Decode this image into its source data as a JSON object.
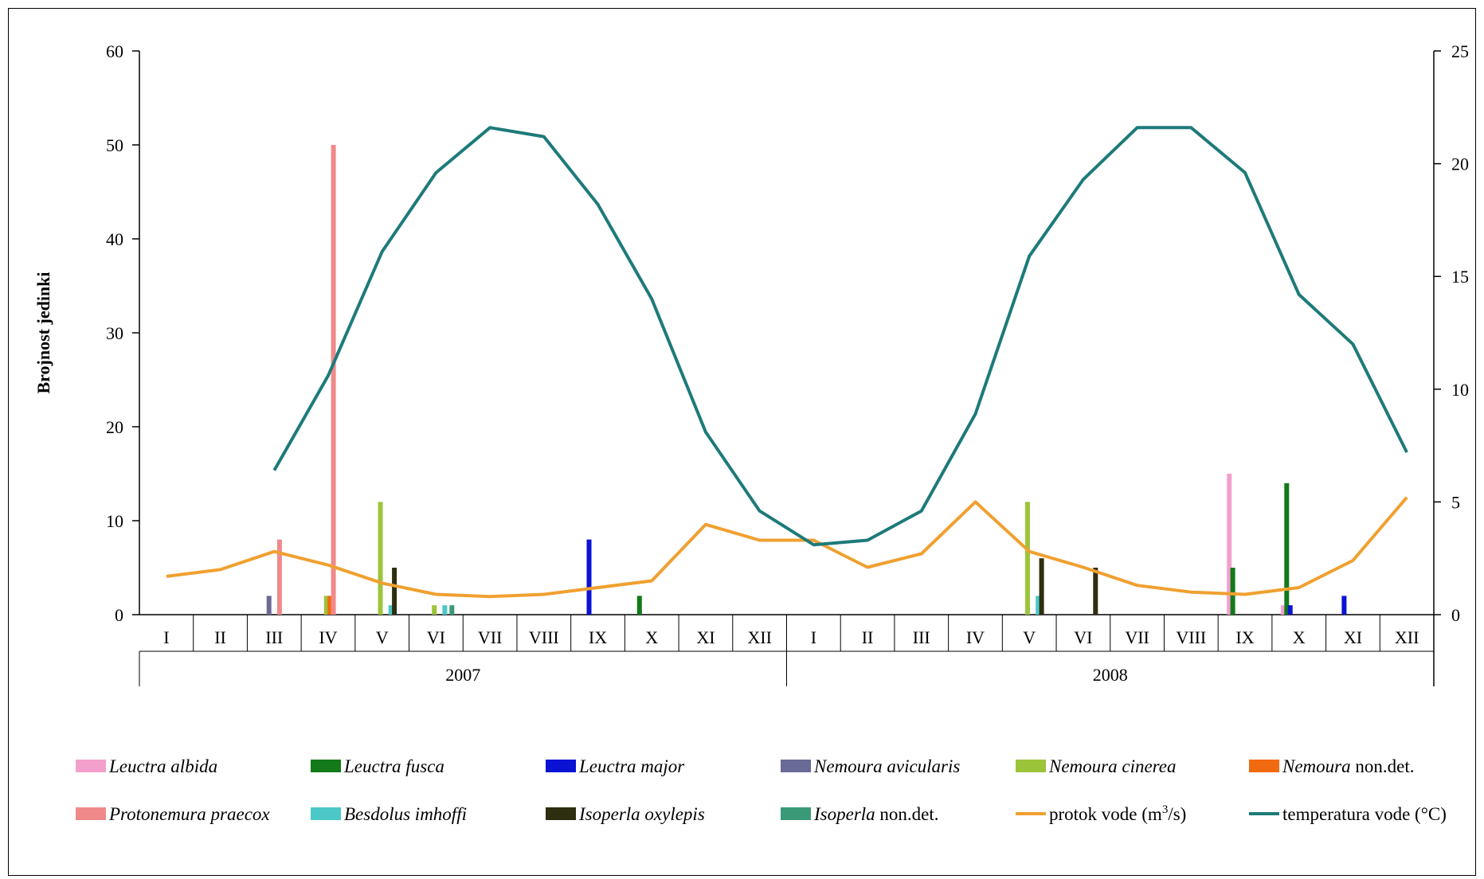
{
  "chart_data": {
    "type": "bar+line",
    "ylabel": "Brojnost jedinki",
    "ylim": [
      0,
      60
    ],
    "yticks": [
      "0",
      "10",
      "20",
      "30",
      "40",
      "50",
      "60"
    ],
    "y2lim": [
      0,
      25
    ],
    "y2ticks": [
      "0",
      "5",
      "10",
      "15",
      "20",
      "25"
    ],
    "months": [
      "I",
      "II",
      "III",
      "IV",
      "V",
      "VI",
      "VII",
      "VIII",
      "IX",
      "X",
      "XI",
      "XII",
      "I",
      "II",
      "III",
      "IV",
      "V",
      "VI",
      "VII",
      "VIII",
      "IX",
      "X",
      "XI",
      "XII"
    ],
    "years": [
      {
        "label": "2007",
        "start": 0,
        "end": 12
      },
      {
        "label": "2008",
        "start": 12,
        "end": 24
      }
    ],
    "legend_position": "bottom",
    "bar_series": [
      {
        "name": "Leuctra albida",
        "name_italic": "Leuctra albida",
        "name_plain": "",
        "color": "#f4a0cc",
        "values": [
          0,
          0,
          0,
          0,
          0,
          0,
          0,
          0,
          0,
          0,
          0,
          0,
          0,
          0,
          0,
          0,
          0,
          0,
          0,
          0,
          15,
          1,
          0,
          0
        ]
      },
      {
        "name": "Leuctra fusca",
        "name_italic": "Leuctra fusca",
        "name_plain": "",
        "color": "#127a18",
        "values": [
          0,
          0,
          0,
          0,
          0,
          0,
          0,
          0,
          0,
          2,
          0,
          0,
          0,
          0,
          0,
          0,
          0,
          0,
          0,
          0,
          5,
          14,
          0,
          0
        ]
      },
      {
        "name": "Leuctra major",
        "name_italic": "Leuctra major",
        "name_plain": "",
        "color": "#0a12d4",
        "values": [
          0,
          0,
          0,
          0,
          0,
          0,
          0,
          0,
          8,
          0,
          0,
          0,
          0,
          0,
          0,
          0,
          0,
          0,
          0,
          0,
          0,
          1,
          2,
          0
        ]
      },
      {
        "name": "Nemoura avicularis",
        "name_italic": "Nemoura avicularis",
        "name_plain": "",
        "color": "#6a6a96",
        "values": [
          0,
          0,
          2,
          0,
          0,
          0,
          0,
          0,
          0,
          0,
          0,
          0,
          0,
          0,
          0,
          0,
          0,
          0,
          0,
          0,
          0,
          0,
          0,
          0
        ]
      },
      {
        "name": "Nemoura cinerea",
        "name_italic": "Nemoura cinerea",
        "name_plain": "",
        "color": "#9cc43a",
        "values": [
          0,
          0,
          0,
          2,
          12,
          1,
          0,
          0,
          0,
          0,
          0,
          0,
          0,
          0,
          0,
          0,
          12,
          0,
          0,
          0,
          0,
          0,
          0,
          0
        ]
      },
      {
        "name": "Nemoura non.det.",
        "name_italic": "Nemoura",
        "name_plain": " non.det.",
        "color": "#f26a10",
        "values": [
          0,
          0,
          0,
          2,
          0,
          0,
          0,
          0,
          0,
          0,
          0,
          0,
          0,
          0,
          0,
          0,
          0,
          0,
          0,
          0,
          0,
          0,
          0,
          0
        ]
      },
      {
        "name": "Protonemura praecox",
        "name_italic": "Protonemura praecox",
        "name_plain": "",
        "color": "#f08a8a",
        "values": [
          0,
          0,
          8,
          50,
          0,
          0,
          0,
          0,
          0,
          0,
          0,
          0,
          0,
          0,
          0,
          0,
          0,
          0,
          0,
          0,
          0,
          0,
          0,
          0
        ]
      },
      {
        "name": "Besdolus imhoffi",
        "name_italic": "Besdolus imhoffi",
        "name_plain": "",
        "color": "#4cc8c8",
        "values": [
          0,
          0,
          0,
          0,
          1,
          1,
          0,
          0,
          0,
          0,
          0,
          0,
          0,
          0,
          0,
          0,
          2,
          0,
          0,
          0,
          0,
          0,
          0,
          0
        ]
      },
      {
        "name": "Isoperla oxylepis",
        "name_italic": "Isoperla oxylepis",
        "name_plain": "",
        "color": "#2e2e10",
        "values": [
          0,
          0,
          0,
          0,
          5,
          0,
          0,
          0,
          0,
          0,
          0,
          0,
          0,
          0,
          0,
          0,
          6,
          5,
          0,
          0,
          0,
          0,
          0,
          0
        ]
      },
      {
        "name": "Isoperla non.det.",
        "name_italic": "Isoperla",
        "name_plain": " non.det.",
        "color": "#3a9a78",
        "values": [
          0,
          0,
          0,
          0,
          0,
          1,
          0,
          0,
          0,
          0,
          0,
          0,
          0,
          0,
          0,
          0,
          0,
          0,
          0,
          0,
          0,
          0,
          0,
          0
        ]
      }
    ],
    "line_series": [
      {
        "name": "protok vode (m³/s)",
        "name_prefix": "protok vode (m",
        "name_sup": "3",
        "name_suffix": "/s)",
        "axis": "right",
        "color": "#f0a030",
        "values": [
          1.7,
          2.0,
          2.8,
          2.2,
          1.4,
          0.9,
          0.8,
          0.9,
          1.2,
          1.5,
          4.0,
          3.3,
          3.3,
          2.1,
          2.7,
          5.0,
          2.8,
          2.1,
          1.3,
          1.0,
          0.9,
          1.2,
          2.4,
          5.2
        ]
      },
      {
        "name": "temperatura vode (°C)",
        "axis": "right",
        "color": "#1e7a7a",
        "values": [
          null,
          null,
          6.4,
          10.6,
          16.1,
          19.6,
          21.6,
          21.2,
          18.2,
          14.0,
          8.1,
          4.6,
          3.1,
          3.3,
          4.6,
          8.9,
          15.9,
          19.3,
          21.6,
          21.6,
          19.6,
          14.2,
          12.0,
          7.2
        ]
      }
    ]
  }
}
